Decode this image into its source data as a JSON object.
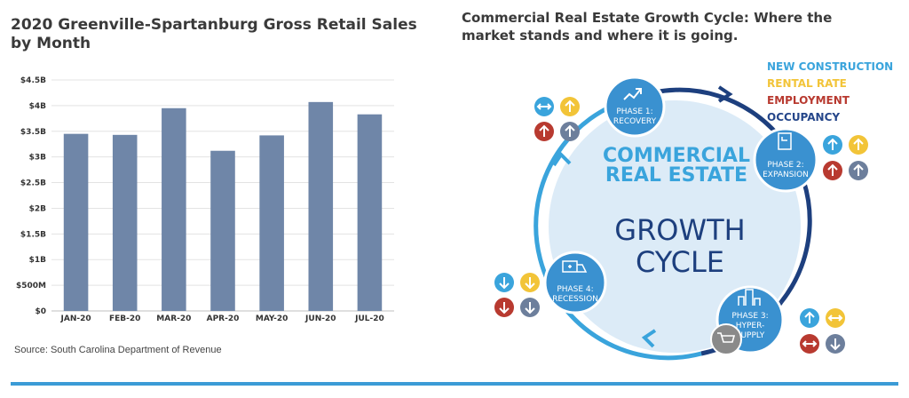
{
  "left_panel": {
    "title": "2020 Greenville-Spartanburg Gross Retail Sales by Month",
    "source": "Source: South Carolina Department of Revenue"
  },
  "chart_data": {
    "type": "bar",
    "title": "2020 Greenville-Spartanburg Gross Retail Sales by Month",
    "xlabel": "",
    "ylabel": "",
    "categories": [
      "JAN-20",
      "FEB-20",
      "MAR-20",
      "APR-20",
      "MAY-20",
      "JUN-20",
      "JUL-20"
    ],
    "values": [
      3.45,
      3.43,
      3.95,
      3.12,
      3.42,
      4.07,
      3.83
    ],
    "unit": "billions USD",
    "ylim": [
      0,
      4.5
    ],
    "yticks": [
      0,
      0.5,
      1,
      1.5,
      2,
      2.5,
      3,
      3.5,
      4,
      4.5
    ],
    "ytick_labels": [
      "$0",
      "$500M",
      "$1B",
      "$1.5B",
      "$2B",
      "$2.5B",
      "$3B",
      "$3.5B",
      "$4B",
      "$4.5B"
    ],
    "grid": true,
    "bar_color": "#6f86a8"
  },
  "right_panel": {
    "title": "Commercial Real Estate Growth Cycle:  Where the market stands and where it is going.",
    "legend": [
      {
        "label": "NEW CONSTRUCTION",
        "color": "#3aa4dc"
      },
      {
        "label": "RENTAL RATE",
        "color": "#f2c438"
      },
      {
        "label": "EMPLOYMENT",
        "color": "#b83a30"
      },
      {
        "label": "OCCUPANCY",
        "color": "#25468a"
      }
    ],
    "center_line1": "COMMERCIAL",
    "center_line2": "REAL ESTATE",
    "center_line3": "GROWTH",
    "center_line4": "CYCLE",
    "phases": [
      {
        "line1": "PHASE 1:",
        "line2": "RECOVERY",
        "icon": "chart-up-icon"
      },
      {
        "line1": "PHASE 2:",
        "line2": "EXPANSION",
        "icon": "blueprint-icon"
      },
      {
        "line1": "PHASE 3:",
        "line2": "HYPER-",
        "line3": "SUPPLY",
        "icon": "buildings-icon"
      },
      {
        "line1": "PHASE 4:",
        "line2": "RECESSION",
        "icon": "ambulance-icon"
      }
    ],
    "colors": {
      "ring": "#1d3f7e",
      "phase_fill": "#3a91d0",
      "center_fill": "#dcebf7",
      "accent": "#3aa4dc"
    }
  }
}
